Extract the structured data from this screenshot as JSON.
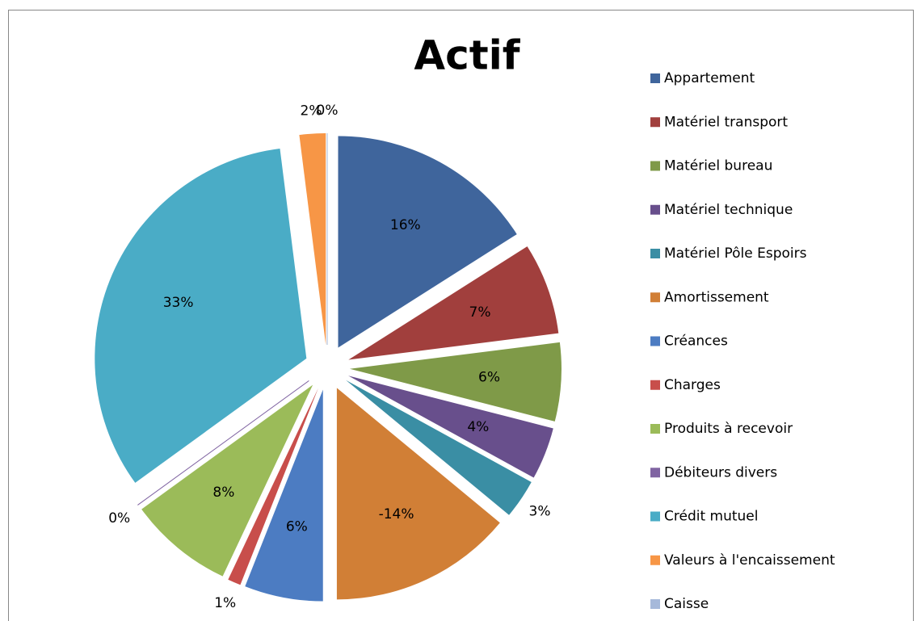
{
  "chart_data": {
    "type": "pie",
    "title": "Actif",
    "categories": [
      "Appartement",
      "Matériel transport",
      "Matériel bureau",
      "Matériel technique",
      "Matériel Pôle Espoirs",
      "Amortissement",
      "Créances",
      "Charges",
      "Produits à recevoir",
      "Débiteurs divers",
      "Crédit mutuel",
      "Valeurs à l'encaissement",
      "Caisse"
    ],
    "values": [
      16,
      7,
      6,
      4,
      3,
      -14,
      6,
      1,
      8,
      0,
      33,
      2,
      0
    ],
    "value_labels": [
      "16%",
      "7%",
      "6%",
      "4%",
      "3%",
      "-14%",
      "6%",
      "1%",
      "8%",
      "0%",
      "33%",
      "2%",
      "0%"
    ],
    "colors": [
      "#3f659c",
      "#a13f3d",
      "#7f9a48",
      "#684f8c",
      "#3a8ea4",
      "#d17f36",
      "#4c7cc2",
      "#c84e4b",
      "#9bbb59",
      "#8064a2",
      "#4aacc6",
      "#f79646",
      "#a6b9da"
    ],
    "legend": "right"
  }
}
